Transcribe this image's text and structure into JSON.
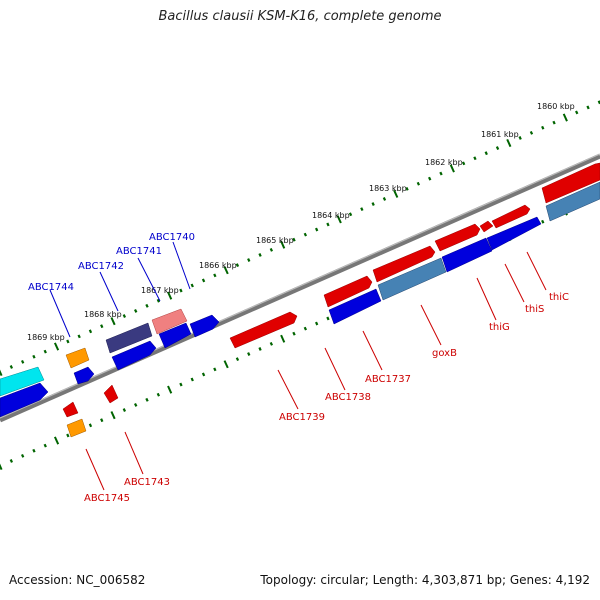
{
  "title": "Bacillus clausii KSM-K16, complete genome",
  "footer": {
    "accession": "Accession: NC_006582",
    "summary": "Topology: circular; Length: 4,303,871 bp; Genes: 4,192"
  },
  "colors": {
    "forward_strand": "#dd0000",
    "reverse_strand": "#0000dd",
    "forward_label": "#cc0000",
    "reverse_label": "#0000cc",
    "orange_gene": "#ff9900",
    "cyan_gene": "#00e5ee",
    "steelblue_gene": "#4682b4",
    "navy_gene": "#3a3a80",
    "pink_gene": "#f08080",
    "backbone": "#888888",
    "ticks": "#006400"
  },
  "kbp_ticks": [
    "1860 kbp",
    "1861 kbp",
    "1862 kbp",
    "1863 kbp",
    "1864 kbp",
    "1865 kbp",
    "1866 kbp",
    "1867 kbp",
    "1868 kbp",
    "1869 kbp"
  ],
  "gene_labels_top": [
    "ABC1740",
    "ABC1741",
    "ABC1742",
    "ABC1744"
  ],
  "gene_labels_bottom": [
    "thiC",
    "thiS",
    "thiG",
    "goxB",
    "ABC1737",
    "ABC1738",
    "ABC1739",
    "ABC1743",
    "ABC1745"
  ]
}
